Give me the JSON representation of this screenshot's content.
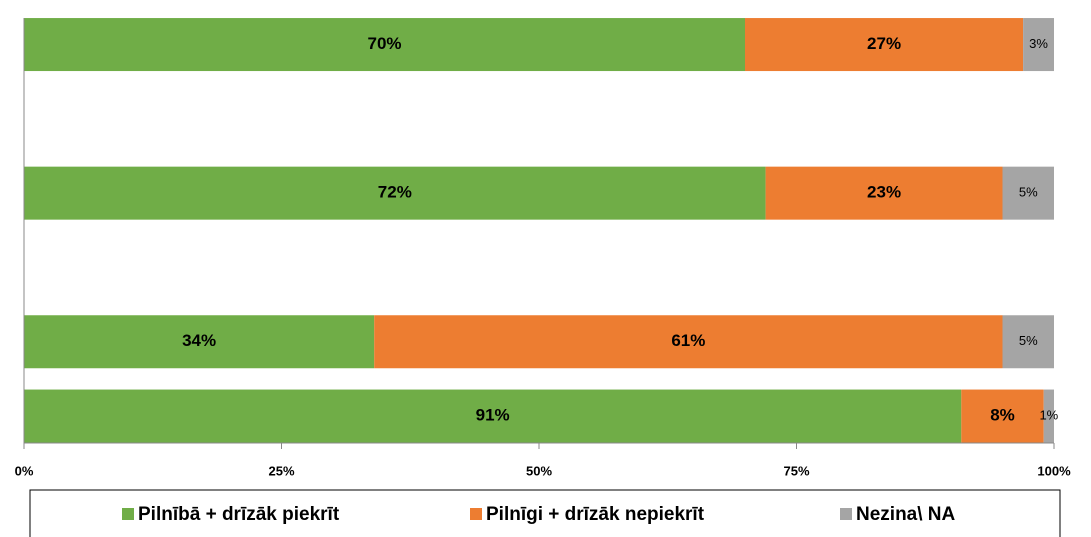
{
  "chart_data": {
    "type": "stacked-bar-horizontal",
    "categories": [
      null,
      null,
      null,
      null,
      null,
      null
    ],
    "series": [
      {
        "name": "Pilnībā + drīzāk piekrīt",
        "color": "#70ad47",
        "values": [
          70,
          null,
          72,
          null,
          34,
          91
        ],
        "value_labels": [
          "70%",
          null,
          "72%",
          null,
          "34%",
          "91%"
        ]
      },
      {
        "name": "Pilnīgi + drīzāk nepiekrīt",
        "color": "#ed7d31",
        "values": [
          27,
          null,
          23,
          null,
          61,
          8
        ],
        "value_labels": [
          "27%",
          null,
          "23%",
          null,
          "61%",
          "8%"
        ]
      },
      {
        "name": "Nezina\\ NA",
        "color": "#a5a5a5",
        "values": [
          3,
          null,
          5,
          null,
          5,
          1
        ],
        "value_labels": [
          "3%",
          null,
          "5%",
          null,
          "5%",
          "1%"
        ]
      }
    ],
    "xlim": [
      0,
      100
    ],
    "xticks": [
      {
        "value": 0,
        "label": "0%"
      },
      {
        "value": 25,
        "label": "25%"
      },
      {
        "value": 50,
        "label": "50%"
      },
      {
        "value": 75,
        "label": "75%"
      },
      {
        "value": 100,
        "label": "100%"
      }
    ],
    "legend": "bottom"
  }
}
